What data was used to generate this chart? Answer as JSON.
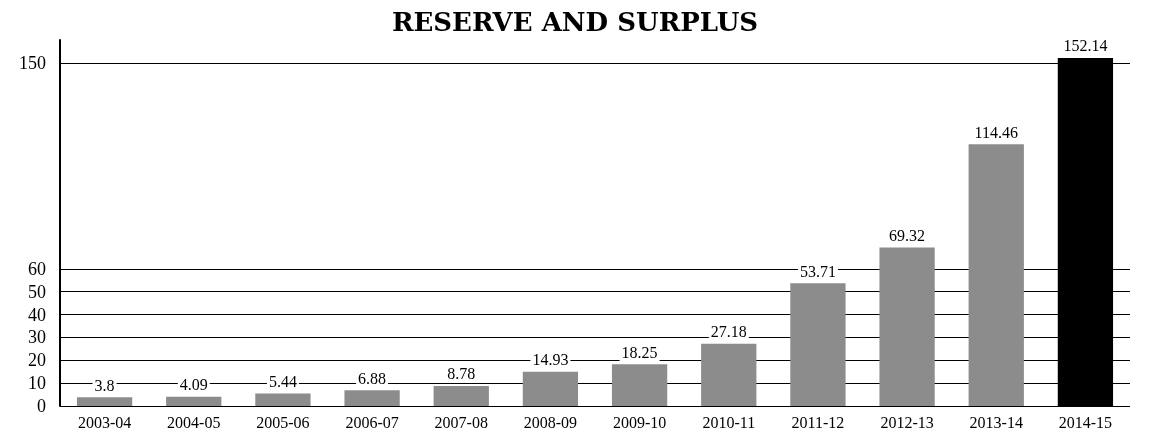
{
  "chart_data": {
    "type": "bar",
    "title": "RESERVE AND SURPLUS",
    "categories": [
      "2003-04",
      "2004-05",
      "2005-06",
      "2006-07",
      "2007-08",
      "2008-09",
      "2009-10",
      "2010-11",
      "2011-12",
      "2012-13",
      "2013-14",
      "2014-15"
    ],
    "values": [
      3.8,
      4.09,
      5.44,
      6.88,
      8.78,
      14.93,
      18.25,
      27.18,
      53.71,
      69.32,
      114.46,
      152.14
    ],
    "colors": [
      "#8c8c8c",
      "#8c8c8c",
      "#8c8c8c",
      "#8c8c8c",
      "#8c8c8c",
      "#8c8c8c",
      "#8c8c8c",
      "#8c8c8c",
      "#8c8c8c",
      "#8c8c8c",
      "#8c8c8c",
      "#000000"
    ],
    "ylim": [
      0,
      160
    ],
    "yticks": [
      0,
      10,
      20,
      30,
      40,
      50,
      60,
      150
    ],
    "grid": "y",
    "data_labels": true
  }
}
